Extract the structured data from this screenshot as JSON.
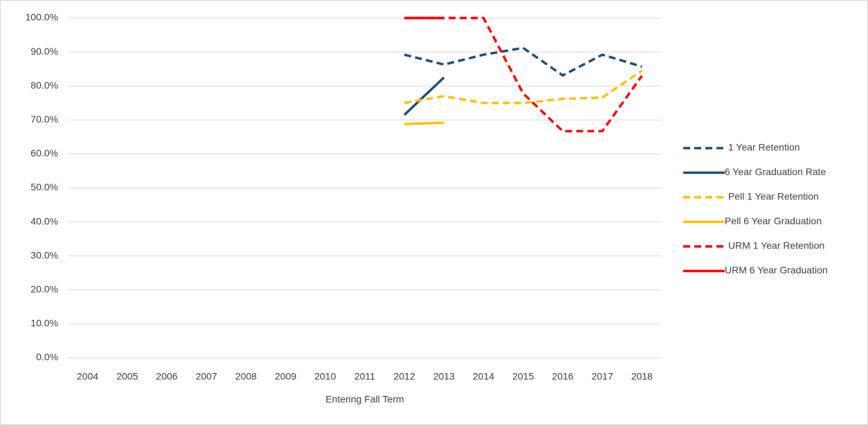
{
  "chart_data": {
    "type": "line",
    "x_label": "Entering Fall Term",
    "categories": [
      "2004",
      "2005",
      "2006",
      "2007",
      "2008",
      "2009",
      "2010",
      "2011",
      "2012",
      "2013",
      "2014",
      "2015",
      "2016",
      "2017",
      "2018"
    ],
    "ylim": [
      0,
      100
    ],
    "yticks": [
      {
        "value": 0,
        "label": "0.0%"
      },
      {
        "value": 10,
        "label": "10.0%"
      },
      {
        "value": 20,
        "label": "20.0%"
      },
      {
        "value": 30,
        "label": "30.0%"
      },
      {
        "value": 40,
        "label": "40.0%"
      },
      {
        "value": 50,
        "label": "50.0%"
      },
      {
        "value": 60,
        "label": "60.0%"
      },
      {
        "value": 70,
        "label": "70.0%"
      },
      {
        "value": 80,
        "label": "80.0%"
      },
      {
        "value": 90,
        "label": "90.0%"
      },
      {
        "value": 100,
        "label": "100.0%"
      }
    ],
    "grid": true,
    "legend": "right",
    "series": [
      {
        "name": "1 Year Retention",
        "color": "#1f4e79",
        "dashed": true,
        "values": [
          null,
          null,
          null,
          null,
          null,
          null,
          null,
          null,
          89.2,
          86.3,
          89.2,
          91.2,
          83.1,
          89.2,
          85.7
        ]
      },
      {
        "name": "6 Year Graduation Rate",
        "color": "#1f4e79",
        "dashed": false,
        "values": [
          null,
          null,
          null,
          null,
          null,
          null,
          null,
          null,
          71.5,
          82.5,
          null,
          null,
          null,
          null,
          null
        ]
      },
      {
        "name": "Pell 1 Year Retention",
        "color": "#ffc000",
        "dashed": true,
        "values": [
          null,
          null,
          null,
          null,
          null,
          null,
          null,
          null,
          75.0,
          77.0,
          75.0,
          75.0,
          76.2,
          76.6,
          84.5
        ]
      },
      {
        "name": "Pell 6 Year Graduation",
        "color": "#ffc000",
        "dashed": false,
        "values": [
          null,
          null,
          null,
          null,
          null,
          null,
          null,
          null,
          68.8,
          69.2,
          null,
          null,
          null,
          null,
          null
        ]
      },
      {
        "name": "URM 1 Year Retention",
        "color": "#ff0000",
        "dashed": true,
        "values": [
          null,
          null,
          null,
          null,
          null,
          null,
          null,
          null,
          100,
          100,
          100,
          77.8,
          66.7,
          66.7,
          83.0
        ]
      },
      {
        "name": "URM 6 Year Graduation",
        "color": "#ff0000",
        "dashed": false,
        "values": [
          null,
          null,
          null,
          null,
          null,
          null,
          null,
          null,
          100,
          100,
          null,
          null,
          null,
          null,
          null
        ]
      }
    ]
  }
}
